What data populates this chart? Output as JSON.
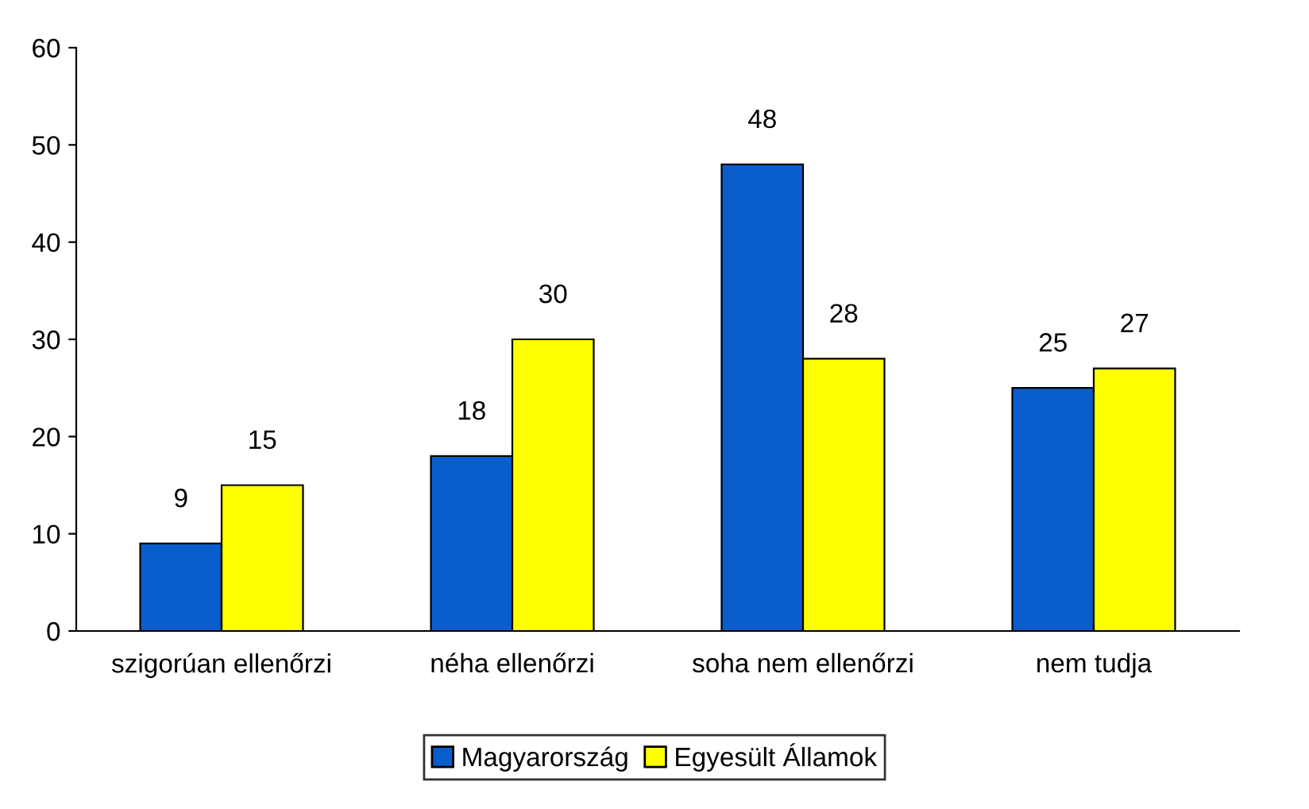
{
  "chart_data": {
    "type": "bar",
    "categories": [
      "szigorúan ellenőrzi",
      "néha ellenőrzi",
      "soha nem ellenőrzi",
      "nem tudja"
    ],
    "series": [
      {
        "name": "Magyarország",
        "color": "#0a5ecc",
        "values": [
          9,
          18,
          48,
          25
        ]
      },
      {
        "name": "Egyesült Államok",
        "color": "#ffff00",
        "values": [
          15,
          30,
          28,
          27
        ]
      }
    ],
    "ylim": [
      0,
      60
    ],
    "yticks": [
      0,
      10,
      20,
      30,
      40,
      50,
      60
    ],
    "grid": false,
    "legend": "bottom",
    "data_labels": true
  }
}
